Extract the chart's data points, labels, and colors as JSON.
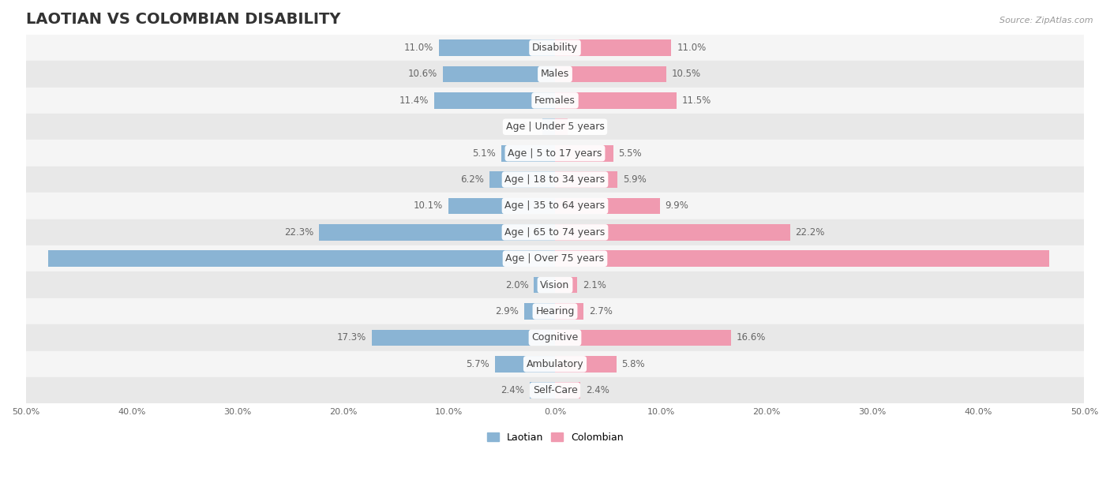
{
  "title": "LAOTIAN VS COLOMBIAN DISABILITY",
  "source": "Source: ZipAtlas.com",
  "categories": [
    "Disability",
    "Males",
    "Females",
    "Age | Under 5 years",
    "Age | 5 to 17 years",
    "Age | 18 to 34 years",
    "Age | 35 to 64 years",
    "Age | 65 to 74 years",
    "Age | Over 75 years",
    "Vision",
    "Hearing",
    "Cognitive",
    "Ambulatory",
    "Self-Care"
  ],
  "laotian": [
    11.0,
    10.6,
    11.4,
    1.2,
    5.1,
    6.2,
    10.1,
    22.3,
    47.9,
    2.0,
    2.9,
    17.3,
    5.7,
    2.4
  ],
  "colombian": [
    11.0,
    10.5,
    11.5,
    1.2,
    5.5,
    5.9,
    9.9,
    22.2,
    46.7,
    2.1,
    2.7,
    16.6,
    5.8,
    2.4
  ],
  "laotian_color": "#8ab4d4",
  "colombian_color": "#f09ab0",
  "laotian_color_large": "#6699cc",
  "colombian_color_large": "#ee7799",
  "label_color": "#666666",
  "row_bg_light": "#f5f5f5",
  "row_bg_dark": "#e8e8e8",
  "axis_max": 50.0,
  "title_fontsize": 14,
  "label_fontsize": 9,
  "bar_label_fontsize": 8.5,
  "legend_labels": [
    "Laotian",
    "Colombian"
  ]
}
